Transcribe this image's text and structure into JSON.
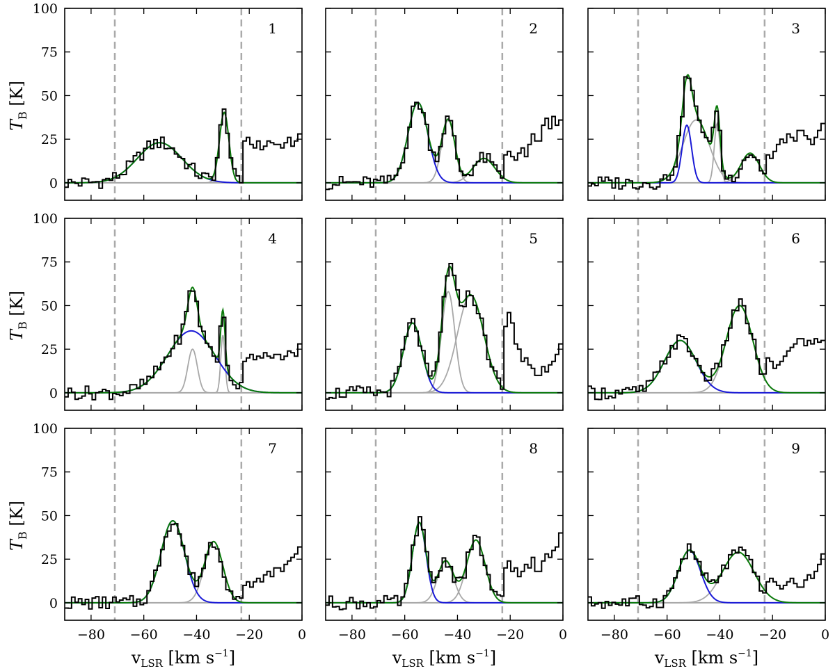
{
  "chart_data": {
    "type": "line",
    "layout": "3x3 grid of spectra panels",
    "x_range": [
      -90,
      0
    ],
    "y_range": [
      -10,
      100
    ],
    "x_ticks": [
      -80,
      -60,
      -40,
      -20,
      0
    ],
    "x_tick_labels": [
      "−80",
      "−60",
      "−40",
      "−20",
      "0"
    ],
    "y_ticks": [
      0,
      25,
      50,
      75,
      100
    ],
    "y_tick_labels": [
      "0",
      "25",
      "50",
      "75",
      "100"
    ],
    "xlabel_main": "v",
    "xlabel_sub": "LSR",
    "xlabel_units": " [km s",
    "xlabel_exp": "−1",
    "xlabel_close": "]",
    "ylabel_main": "T",
    "ylabel_sub": "B",
    "ylabel_units": " [K]",
    "dashed_lines_x": [
      -71,
      -23
    ],
    "colors": {
      "data": "#000000",
      "total_fit": "#0a7a0a",
      "primary_component": "#1a1ad6",
      "other_components": "#a8a8a8",
      "dashed": "#aaaaaa"
    },
    "panels": [
      {
        "label": "1",
        "data_tail": [
          24,
          26,
          22,
          20,
          24,
          19,
          21,
          24,
          23,
          22,
          20,
          23,
          26,
          21,
          24,
          28
        ],
        "components": [
          {
            "amp": 23,
            "center": -54,
            "sigma": 8.5,
            "primary": true
          },
          {
            "amp": 40,
            "center": -29.5,
            "sigma": 1.8,
            "primary": false
          }
        ]
      },
      {
        "label": "2",
        "data_tail": [
          16,
          18,
          15,
          13,
          17,
          20,
          15,
          22,
          28,
          24,
          33,
          37,
          31,
          38,
          33,
          36
        ],
        "components": [
          {
            "amp": 46,
            "center": -55,
            "sigma": 3.8,
            "primary": true
          },
          {
            "amp": 36,
            "center": -43.5,
            "sigma": 2.5,
            "primary": false
          },
          {
            "amp": 14,
            "center": -30,
            "sigma": 4.2,
            "primary": false
          }
        ]
      },
      {
        "label": "3",
        "data_tail": [
          16,
          14,
          18,
          22,
          25,
          23,
          28,
          26,
          24,
          30,
          27,
          25,
          22,
          26,
          30,
          34
        ],
        "components": [
          {
            "amp": 33,
            "center": -52.5,
            "sigma": 1.8,
            "primary": true
          },
          {
            "amp": 36,
            "center": -49,
            "sigma": 5.0,
            "primary": false
          },
          {
            "amp": 34,
            "center": -41,
            "sigma": 1.1,
            "primary": false
          },
          {
            "amp": 17,
            "center": -28.5,
            "sigma": 3.5,
            "primary": false
          }
        ]
      },
      {
        "label": "4",
        "data_tail": [
          18,
          20,
          22,
          19,
          21,
          20,
          23,
          21,
          20,
          22,
          19,
          21,
          24,
          23,
          21,
          28
        ],
        "components": [
          {
            "amp": 35.5,
            "center": -42,
            "sigma": 9.0,
            "primary": true
          },
          {
            "amp": 25,
            "center": -41.5,
            "sigma": 1.8,
            "primary": false
          },
          {
            "amp": 33,
            "center": -30,
            "sigma": 0.8,
            "primary": false
          }
        ]
      },
      {
        "label": "5",
        "data_tail": [
          38,
          46,
          40,
          28,
          25,
          18,
          20,
          16,
          14,
          10,
          15,
          12,
          16,
          18,
          22,
          28
        ],
        "components": [
          {
            "amp": 40,
            "center": -57,
            "sigma": 3.5,
            "primary": true
          },
          {
            "amp": 58,
            "center": -43.5,
            "sigma": 2.5,
            "primary": false
          },
          {
            "amp": 56,
            "center": -35,
            "sigma": 5.0,
            "primary": false
          }
        ]
      },
      {
        "label": "6",
        "data_tail": [
          20,
          18,
          14,
          16,
          18,
          21,
          24,
          26,
          28,
          31,
          27,
          30,
          28,
          31,
          29,
          30
        ],
        "components": [
          {
            "amp": 30,
            "center": -55,
            "sigma": 6.0,
            "primary": true
          },
          {
            "amp": 50,
            "center": -32.5,
            "sigma": 5.0,
            "primary": false
          }
        ]
      },
      {
        "label": "7",
        "data_tail": [
          10,
          12,
          9,
          12,
          14,
          12,
          16,
          18,
          15,
          20,
          18,
          22,
          24,
          26,
          28,
          32
        ],
        "components": [
          {
            "amp": 47,
            "center": -49,
            "sigma": 4.5,
            "primary": true
          },
          {
            "amp": 35,
            "center": -33.5,
            "sigma": 3.5,
            "primary": false
          }
        ]
      },
      {
        "label": "8",
        "data_tail": [
          20,
          24,
          18,
          20,
          15,
          18,
          22,
          20,
          26,
          18,
          24,
          28,
          26,
          30,
          32,
          40
        ],
        "components": [
          {
            "amp": 46,
            "center": -54.5,
            "sigma": 2.6,
            "primary": true
          },
          {
            "amp": 24,
            "center": -44.5,
            "sigma": 3.0,
            "primary": false
          },
          {
            "amp": 36,
            "center": -33,
            "sigma": 3.5,
            "primary": false
          }
        ]
      },
      {
        "label": "9",
        "data_tail": [
          12,
          14,
          12,
          10,
          8,
          10,
          12,
          14,
          11,
          9,
          13,
          16,
          14,
          18,
          22,
          28
        ],
        "components": [
          {
            "amp": 30,
            "center": -51.5,
            "sigma": 4.2,
            "primary": true
          },
          {
            "amp": 29,
            "center": -33,
            "sigma": 6.0,
            "primary": false
          }
        ]
      }
    ]
  }
}
